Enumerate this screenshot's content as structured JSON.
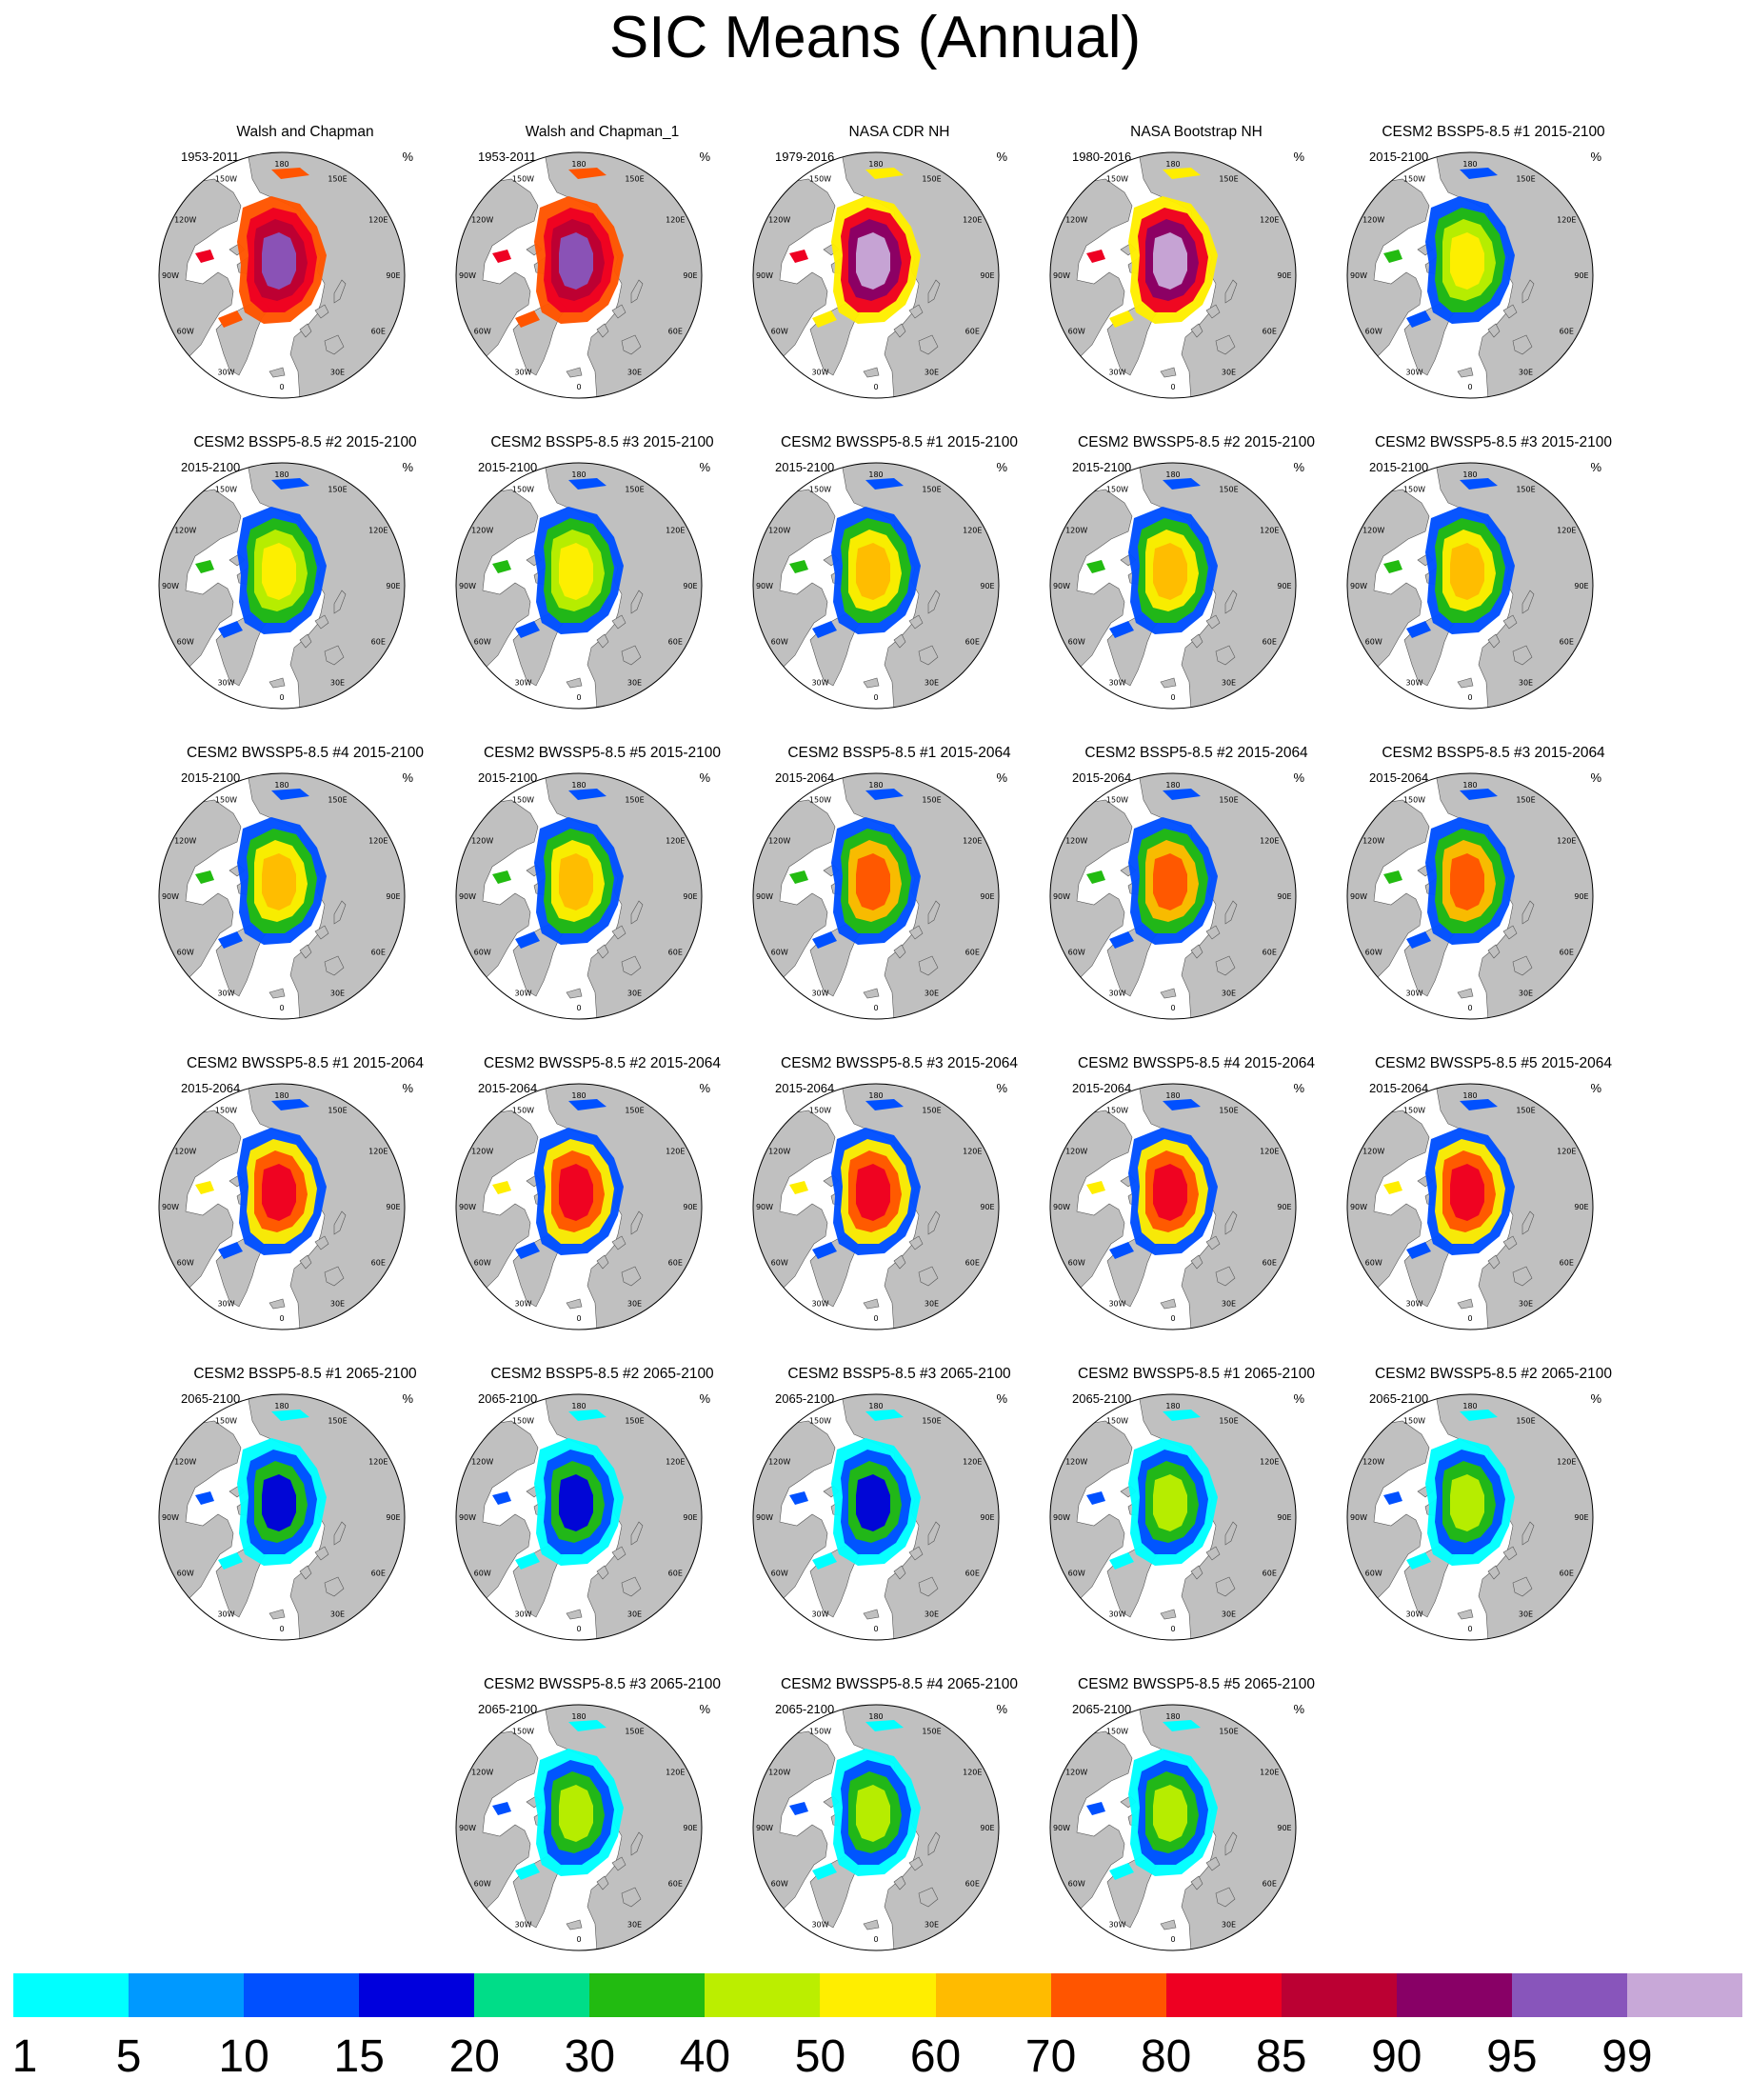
{
  "title": "SIC Means (Annual)",
  "unit": "%",
  "map_labels": {
    "lon": [
      "180",
      "150E",
      "120E",
      "90E",
      "60E",
      "30E",
      "0",
      "30W",
      "60W",
      "90W",
      "120W",
      "150W"
    ]
  },
  "colors": {
    "land": "#c0c0c0",
    "ocean": "#ffffff",
    "outline": "#000000"
  },
  "colorbar": {
    "colors": [
      "#00ffff",
      "#0099ff",
      "#0050ff",
      "#0000dd",
      "#00dd88",
      "#22bb11",
      "#bbee00",
      "#ffee00",
      "#ffbb00",
      "#ff5500",
      "#ee0022",
      "#bb0033",
      "#880066",
      "#8855bb",
      "#c8a8d8"
    ],
    "labels": [
      "1",
      "5",
      "10",
      "15",
      "20",
      "30",
      "40",
      "50",
      "60",
      "70",
      "80",
      "85",
      "90",
      "95",
      "99"
    ]
  },
  "panels": [
    {
      "title": "Walsh and Chapman",
      "period": "1953-2011",
      "palette": [
        "#ff5500",
        "#ee0022",
        "#bb0033",
        "#8855bb"
      ]
    },
    {
      "title": "Walsh and Chapman_1",
      "period": "1953-2011",
      "palette": [
        "#ff5500",
        "#ee0022",
        "#bb0033",
        "#8855bb"
      ]
    },
    {
      "title": "NASA CDR NH",
      "period": "1979-2016",
      "palette": [
        "#ffee00",
        "#ee0022",
        "#880066",
        "#c8a8d8"
      ]
    },
    {
      "title": "NASA Bootstrap NH",
      "period": "1980-2016",
      "palette": [
        "#ffee00",
        "#ee0022",
        "#880066",
        "#c8a8d8"
      ]
    },
    {
      "title": "CESM2 BSSP5-8.5 #1 2015-2100",
      "period": "2015-2100",
      "palette": [
        "#0050ff",
        "#22bb11",
        "#bbee00",
        "#ffee00"
      ]
    },
    {
      "title": "CESM2 BSSP5-8.5 #2 2015-2100",
      "period": "2015-2100",
      "palette": [
        "#0050ff",
        "#22bb11",
        "#bbee00",
        "#ffee00"
      ]
    },
    {
      "title": "CESM2 BSSP5-8.5 #3 2015-2100",
      "period": "2015-2100",
      "palette": [
        "#0050ff",
        "#22bb11",
        "#bbee00",
        "#ffee00"
      ]
    },
    {
      "title": "CESM2 BWSSP5-8.5 #1 2015-2100",
      "period": "2015-2100",
      "palette": [
        "#0050ff",
        "#22bb11",
        "#ffee00",
        "#ffbb00"
      ]
    },
    {
      "title": "CESM2 BWSSP5-8.5 #2 2015-2100",
      "period": "2015-2100",
      "palette": [
        "#0050ff",
        "#22bb11",
        "#ffee00",
        "#ffbb00"
      ]
    },
    {
      "title": "CESM2 BWSSP5-8.5 #3 2015-2100",
      "period": "2015-2100",
      "palette": [
        "#0050ff",
        "#22bb11",
        "#ffee00",
        "#ffbb00"
      ]
    },
    {
      "title": "CESM2 BWSSP5-8.5 #4 2015-2100",
      "period": "2015-2100",
      "palette": [
        "#0050ff",
        "#22bb11",
        "#ffee00",
        "#ffbb00"
      ]
    },
    {
      "title": "CESM2 BWSSP5-8.5 #5 2015-2100",
      "period": "2015-2100",
      "palette": [
        "#0050ff",
        "#22bb11",
        "#ffee00",
        "#ffbb00"
      ]
    },
    {
      "title": "CESM2 BSSP5-8.5 #1 2015-2064",
      "period": "2015-2064",
      "palette": [
        "#0050ff",
        "#22bb11",
        "#ffbb00",
        "#ff5500"
      ]
    },
    {
      "title": "CESM2 BSSP5-8.5 #2 2015-2064",
      "period": "2015-2064",
      "palette": [
        "#0050ff",
        "#22bb11",
        "#ffbb00",
        "#ff5500"
      ]
    },
    {
      "title": "CESM2 BSSP5-8.5 #3 2015-2064",
      "period": "2015-2064",
      "palette": [
        "#0050ff",
        "#22bb11",
        "#ffbb00",
        "#ff5500"
      ]
    },
    {
      "title": "CESM2 BWSSP5-8.5 #1 2015-2064",
      "period": "2015-2064",
      "palette": [
        "#0050ff",
        "#ffee00",
        "#ff5500",
        "#ee0022"
      ]
    },
    {
      "title": "CESM2 BWSSP5-8.5 #2 2015-2064",
      "period": "2015-2064",
      "palette": [
        "#0050ff",
        "#ffee00",
        "#ff5500",
        "#ee0022"
      ]
    },
    {
      "title": "CESM2 BWSSP5-8.5 #3 2015-2064",
      "period": "2015-2064",
      "palette": [
        "#0050ff",
        "#ffee00",
        "#ff5500",
        "#ee0022"
      ]
    },
    {
      "title": "CESM2 BWSSP5-8.5 #4 2015-2064",
      "period": "2015-2064",
      "palette": [
        "#0050ff",
        "#ffee00",
        "#ff5500",
        "#ee0022"
      ]
    },
    {
      "title": "CESM2 BWSSP5-8.5 #5 2015-2064",
      "period": "2015-2064",
      "palette": [
        "#0050ff",
        "#ffee00",
        "#ff5500",
        "#ee0022"
      ]
    },
    {
      "title": "CESM2 BSSP5-8.5 #1 2065-2100",
      "period": "2065-2100",
      "palette": [
        "#00ffff",
        "#0050ff",
        "#22bb11",
        "#0000dd"
      ]
    },
    {
      "title": "CESM2 BSSP5-8.5 #2 2065-2100",
      "period": "2065-2100",
      "palette": [
        "#00ffff",
        "#0050ff",
        "#22bb11",
        "#0000dd"
      ]
    },
    {
      "title": "CESM2 BSSP5-8.5 #3 2065-2100",
      "period": "2065-2100",
      "palette": [
        "#00ffff",
        "#0050ff",
        "#22bb11",
        "#0000dd"
      ]
    },
    {
      "title": "CESM2 BWSSP5-8.5 #1 2065-2100",
      "period": "2065-2100",
      "palette": [
        "#00ffff",
        "#0050ff",
        "#22bb11",
        "#bbee00"
      ]
    },
    {
      "title": "CESM2 BWSSP5-8.5 #2 2065-2100",
      "period": "2065-2100",
      "palette": [
        "#00ffff",
        "#0050ff",
        "#22bb11",
        "#bbee00"
      ]
    },
    {
      "title": "CESM2 BWSSP5-8.5 #3 2065-2100",
      "period": "2065-2100",
      "palette": [
        "#00ffff",
        "#0050ff",
        "#22bb11",
        "#bbee00"
      ]
    },
    {
      "title": "CESM2 BWSSP5-8.5 #4 2065-2100",
      "period": "2065-2100",
      "palette": [
        "#00ffff",
        "#0050ff",
        "#22bb11",
        "#bbee00"
      ]
    },
    {
      "title": "CESM2 BWSSP5-8.5 #5 2065-2100",
      "period": "2065-2100",
      "palette": [
        "#00ffff",
        "#0050ff",
        "#22bb11",
        "#bbee00"
      ]
    }
  ]
}
